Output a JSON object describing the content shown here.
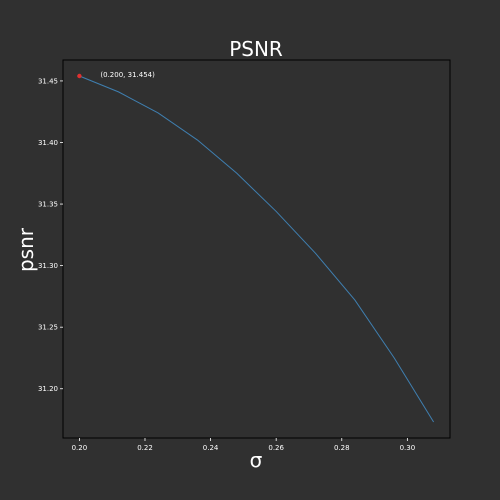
{
  "chart_data": {
    "type": "line",
    "title": "PSNR",
    "xlabel": "σ",
    "ylabel": "psnr",
    "xlim": [
      0.195,
      0.313
    ],
    "ylim": [
      31.16,
      31.467
    ],
    "xticks": [
      0.2,
      0.22,
      0.24,
      0.26,
      0.28,
      0.3
    ],
    "xtick_labels": [
      "0.20",
      "0.22",
      "0.24",
      "0.26",
      "0.28",
      "0.30"
    ],
    "yticks": [
      31.2,
      31.25,
      31.3,
      31.35,
      31.4,
      31.45
    ],
    "ytick_labels": [
      "31.20",
      "31.25",
      "31.30",
      "31.35",
      "31.40",
      "31.45"
    ],
    "grid": false,
    "series": [
      {
        "color": "#3f7fb0",
        "x": [
          0.2,
          0.212,
          0.224,
          0.236,
          0.248,
          0.26,
          0.272,
          0.284,
          0.296,
          0.308
        ],
        "y": [
          31.454,
          31.441,
          31.424,
          31.402,
          31.375,
          31.344,
          31.31,
          31.272,
          31.225,
          31.173
        ]
      }
    ],
    "highlight": {
      "x": 0.2,
      "y": 31.454,
      "color": "#e03030",
      "label": "(0.200, 31.454)"
    }
  }
}
